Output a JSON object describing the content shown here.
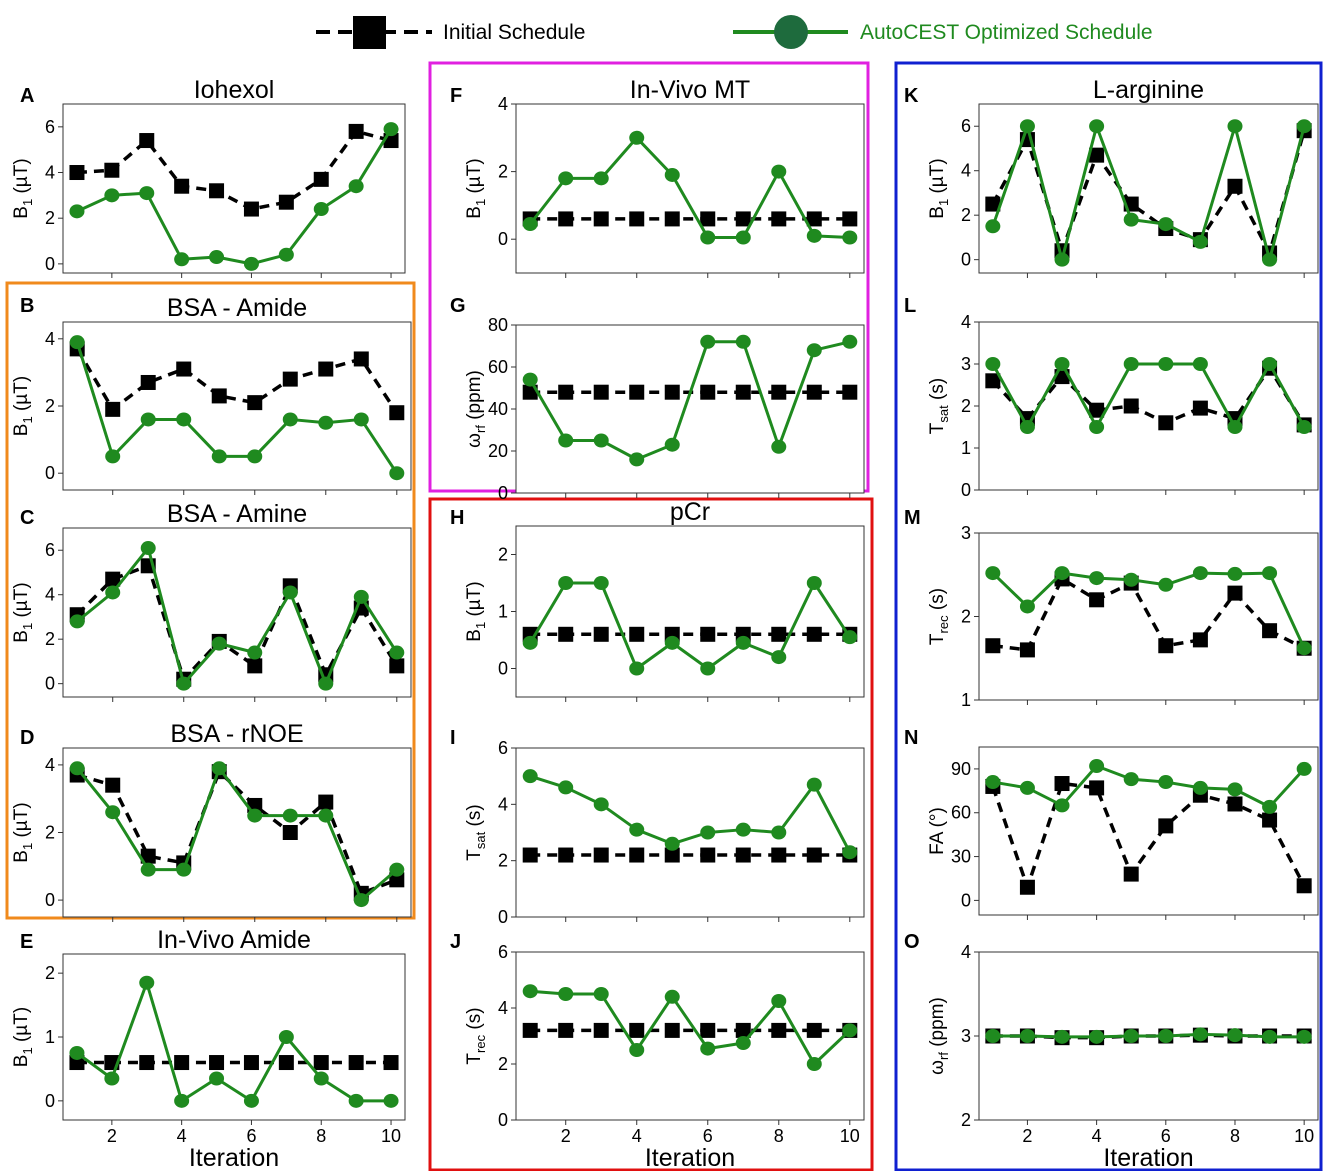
{
  "legend": {
    "initial_label": "Initial Schedule",
    "optimized_label": "AutoCEST Optimized Schedule"
  },
  "colors": {
    "initial": "#000000",
    "optimized": "#1f8a1f",
    "optimized_legend_marker": "#1e6b3d",
    "frame_bsa": "#f08a1c",
    "frame_invivo_mt": "#e020e0",
    "frame_pcr": "#e01010",
    "frame_larginine": "#1020d0"
  },
  "xaxis": {
    "label": "Iteration",
    "ticks": [
      2,
      4,
      6,
      8,
      10
    ],
    "range": [
      0.6,
      10.4
    ]
  },
  "chart_data": [
    {
      "id": "A",
      "type": "line",
      "title": "Iohexol",
      "ylabel": "B1 (µT)",
      "ylim": [
        -0.4,
        7
      ],
      "yticks": [
        0,
        2,
        4,
        6
      ],
      "x": [
        1,
        2,
        3,
        4,
        5,
        6,
        7,
        8,
        9,
        10
      ],
      "series": [
        {
          "name": "Initial Schedule",
          "values": [
            4.0,
            4.1,
            5.4,
            3.4,
            3.2,
            2.4,
            2.7,
            3.7,
            5.8,
            5.4
          ]
        },
        {
          "name": "AutoCEST Optimized Schedule",
          "values": [
            2.3,
            3.0,
            3.1,
            0.2,
            0.3,
            0.0,
            0.4,
            2.4,
            3.4,
            5.9
          ]
        }
      ]
    },
    {
      "id": "B",
      "type": "line",
      "title": "BSA - Amide",
      "ylabel": "B1 (µT)",
      "ylim": [
        -0.5,
        4.5
      ],
      "yticks": [
        0,
        2,
        4
      ],
      "x": [
        1,
        2,
        3,
        4,
        5,
        6,
        7,
        8,
        9,
        10
      ],
      "series": [
        {
          "name": "Initial Schedule",
          "values": [
            3.7,
            1.9,
            2.7,
            3.1,
            2.3,
            2.1,
            2.8,
            3.1,
            3.4,
            1.8
          ]
        },
        {
          "name": "AutoCEST Optimized Schedule",
          "values": [
            3.9,
            0.5,
            1.6,
            1.6,
            0.5,
            0.5,
            1.6,
            1.5,
            1.6,
            0.0
          ]
        }
      ]
    },
    {
      "id": "C",
      "type": "line",
      "title": "BSA - Amine",
      "ylabel": "B1 (µT)",
      "ylim": [
        -0.6,
        7
      ],
      "yticks": [
        0,
        2,
        4,
        6
      ],
      "x": [
        1,
        2,
        3,
        4,
        5,
        6,
        7,
        8,
        9,
        10
      ],
      "series": [
        {
          "name": "Initial Schedule",
          "values": [
            3.1,
            4.7,
            5.3,
            0.2,
            1.9,
            0.8,
            4.4,
            0.4,
            3.4,
            0.8
          ]
        },
        {
          "name": "AutoCEST Optimized Schedule",
          "values": [
            2.8,
            4.1,
            6.1,
            0.0,
            1.8,
            1.4,
            4.1,
            0.0,
            3.9,
            1.4
          ]
        }
      ]
    },
    {
      "id": "D",
      "type": "line",
      "title": "BSA - rNOE",
      "ylabel": "B1 (µT)",
      "ylim": [
        -0.5,
        4.5
      ],
      "yticks": [
        0,
        2,
        4
      ],
      "x": [
        1,
        2,
        3,
        4,
        5,
        6,
        7,
        8,
        9,
        10
      ],
      "series": [
        {
          "name": "Initial Schedule",
          "values": [
            3.7,
            3.4,
            1.3,
            1.1,
            3.8,
            2.8,
            2.0,
            2.9,
            0.2,
            0.6
          ]
        },
        {
          "name": "AutoCEST Optimized Schedule",
          "values": [
            3.9,
            2.6,
            0.9,
            0.9,
            3.9,
            2.5,
            2.5,
            2.5,
            0.0,
            0.9
          ]
        }
      ]
    },
    {
      "id": "E",
      "type": "line",
      "title": "In-Vivo Amide",
      "ylabel": "B1 (µT)",
      "ylim": [
        -0.3,
        2.3
      ],
      "yticks": [
        0,
        1,
        2
      ],
      "x": [
        1,
        2,
        3,
        4,
        5,
        6,
        7,
        8,
        9,
        10
      ],
      "series": [
        {
          "name": "Initial Schedule",
          "values": [
            0.6,
            0.6,
            0.6,
            0.6,
            0.6,
            0.6,
            0.6,
            0.6,
            0.6,
            0.6
          ]
        },
        {
          "name": "AutoCEST Optimized Schedule",
          "values": [
            0.75,
            0.35,
            1.85,
            0.0,
            0.35,
            0.0,
            1.0,
            0.35,
            0.0,
            0.0
          ]
        }
      ]
    },
    {
      "id": "F",
      "type": "line",
      "title": "In-Vivo MT",
      "ylabel": "B1 (µT)",
      "ylim": [
        -1,
        4
      ],
      "yticks": [
        0,
        2,
        4
      ],
      "x": [
        1,
        2,
        3,
        4,
        5,
        6,
        7,
        8,
        9,
        10
      ],
      "series": [
        {
          "name": "Initial Schedule",
          "values": [
            0.6,
            0.6,
            0.6,
            0.6,
            0.6,
            0.6,
            0.6,
            0.6,
            0.6,
            0.6
          ]
        },
        {
          "name": "AutoCEST Optimized Schedule",
          "values": [
            0.45,
            1.8,
            1.8,
            3.0,
            1.9,
            0.05,
            0.05,
            2.0,
            0.1,
            0.05
          ]
        }
      ]
    },
    {
      "id": "G",
      "type": "line",
      "title": "",
      "ylabel": "ωrf (ppm)",
      "ylim": [
        0,
        80
      ],
      "yticks": [
        0,
        20,
        40,
        60,
        80
      ],
      "x": [
        1,
        2,
        3,
        4,
        5,
        6,
        7,
        8,
        9,
        10
      ],
      "series": [
        {
          "name": "Initial Schedule",
          "values": [
            48,
            48,
            48,
            48,
            48,
            48,
            48,
            48,
            48,
            48
          ]
        },
        {
          "name": "AutoCEST Optimized Schedule",
          "values": [
            54,
            25,
            25,
            16,
            23,
            72,
            72,
            22,
            68,
            72
          ]
        }
      ]
    },
    {
      "id": "H",
      "type": "line",
      "title": "pCr",
      "ylabel": "B1 (µT)",
      "ylim": [
        -0.5,
        2.5
      ],
      "yticks": [
        0,
        1,
        2
      ],
      "x": [
        1,
        2,
        3,
        4,
        5,
        6,
        7,
        8,
        9,
        10
      ],
      "series": [
        {
          "name": "Initial Schedule",
          "values": [
            0.6,
            0.6,
            0.6,
            0.6,
            0.6,
            0.6,
            0.6,
            0.6,
            0.6,
            0.6
          ]
        },
        {
          "name": "AutoCEST Optimized Schedule",
          "values": [
            0.45,
            1.5,
            1.5,
            0.0,
            0.45,
            0.0,
            0.45,
            0.2,
            1.5,
            0.55
          ]
        }
      ]
    },
    {
      "id": "I",
      "type": "line",
      "title": "",
      "ylabel": "Tsat (s)",
      "ylim": [
        0,
        6
      ],
      "yticks": [
        0,
        2,
        4,
        6
      ],
      "x": [
        1,
        2,
        3,
        4,
        5,
        6,
        7,
        8,
        9,
        10
      ],
      "series": [
        {
          "name": "Initial Schedule",
          "values": [
            2.2,
            2.2,
            2.2,
            2.2,
            2.2,
            2.2,
            2.2,
            2.2,
            2.2,
            2.2
          ]
        },
        {
          "name": "AutoCEST Optimized Schedule",
          "values": [
            5.0,
            4.6,
            4.0,
            3.1,
            2.6,
            3.0,
            3.1,
            3.0,
            4.7,
            2.3
          ]
        }
      ]
    },
    {
      "id": "J",
      "type": "line",
      "title": "",
      "ylabel": "Trec (s)",
      "ylim": [
        0,
        6
      ],
      "yticks": [
        0,
        2,
        4,
        6
      ],
      "x": [
        1,
        2,
        3,
        4,
        5,
        6,
        7,
        8,
        9,
        10
      ],
      "series": [
        {
          "name": "Initial Schedule",
          "values": [
            3.2,
            3.2,
            3.2,
            3.2,
            3.2,
            3.2,
            3.2,
            3.2,
            3.2,
            3.2
          ]
        },
        {
          "name": "AutoCEST Optimized Schedule",
          "values": [
            4.6,
            4.5,
            4.5,
            2.5,
            4.4,
            2.55,
            2.75,
            4.25,
            2.0,
            3.2
          ]
        }
      ]
    },
    {
      "id": "K",
      "type": "line",
      "title": "L-arginine",
      "ylabel": "B1 (µT)",
      "ylim": [
        -0.6,
        7
      ],
      "yticks": [
        0,
        2,
        4,
        6
      ],
      "x": [
        1,
        2,
        3,
        4,
        5,
        6,
        7,
        8,
        9,
        10
      ],
      "series": [
        {
          "name": "Initial Schedule",
          "values": [
            2.5,
            5.4,
            0.4,
            4.7,
            2.5,
            1.4,
            0.9,
            3.3,
            0.3,
            5.8
          ]
        },
        {
          "name": "AutoCEST Optimized Schedule",
          "values": [
            1.5,
            6.0,
            0.0,
            6.0,
            1.8,
            1.6,
            0.8,
            6.0,
            0.0,
            6.0
          ]
        }
      ]
    },
    {
      "id": "L",
      "type": "line",
      "title": "",
      "ylabel": "Tsat (s)",
      "ylim": [
        0,
        4
      ],
      "yticks": [
        0,
        1,
        2,
        3,
        4
      ],
      "x": [
        1,
        2,
        3,
        4,
        5,
        6,
        7,
        8,
        9,
        10
      ],
      "series": [
        {
          "name": "Initial Schedule",
          "values": [
            2.6,
            1.7,
            2.7,
            1.9,
            2.0,
            1.6,
            1.95,
            1.7,
            2.9,
            1.55
          ]
        },
        {
          "name": "AutoCEST Optimized Schedule",
          "values": [
            3.0,
            1.5,
            3.0,
            1.5,
            3.0,
            3.0,
            3.0,
            1.5,
            3.0,
            1.5
          ]
        }
      ]
    },
    {
      "id": "M",
      "type": "line",
      "title": "",
      "ylabel": "Trec (s)",
      "ylim": [
        1,
        3
      ],
      "yticks": [
        1,
        2,
        3
      ],
      "x": [
        1,
        2,
        3,
        4,
        5,
        6,
        7,
        8,
        9,
        10
      ],
      "series": [
        {
          "name": "Initial Schedule",
          "values": [
            1.65,
            1.6,
            2.45,
            2.2,
            2.4,
            1.65,
            1.72,
            2.28,
            1.83,
            1.62
          ]
        },
        {
          "name": "AutoCEST Optimized Schedule",
          "values": [
            2.52,
            2.12,
            2.52,
            2.46,
            2.44,
            2.38,
            2.52,
            2.51,
            2.52,
            1.62
          ]
        }
      ]
    },
    {
      "id": "N",
      "type": "line",
      "title": "",
      "ylabel": "FA (°)",
      "ylim": [
        -10,
        105
      ],
      "yticks": [
        0,
        30,
        60,
        90
      ],
      "x": [
        1,
        2,
        3,
        4,
        5,
        6,
        7,
        8,
        9,
        10
      ],
      "series": [
        {
          "name": "Initial Schedule",
          "values": [
            78,
            9,
            80,
            77,
            18,
            51,
            72,
            66,
            55,
            10
          ]
        },
        {
          "name": "AutoCEST Optimized Schedule",
          "values": [
            81,
            77,
            65,
            92,
            83,
            81,
            77,
            76,
            64,
            90
          ]
        }
      ]
    },
    {
      "id": "O",
      "type": "line",
      "title": "",
      "ylabel": "ωrf (ppm)",
      "ylim": [
        2,
        4
      ],
      "yticks": [
        2,
        3,
        4
      ],
      "x": [
        1,
        2,
        3,
        4,
        5,
        6,
        7,
        8,
        9,
        10
      ],
      "series": [
        {
          "name": "Initial Schedule",
          "values": [
            3.0,
            3.0,
            2.98,
            2.98,
            3.0,
            3.0,
            3.01,
            3.0,
            3.0,
            3.0
          ]
        },
        {
          "name": "AutoCEST Optimized Schedule",
          "values": [
            3.0,
            3.0,
            2.99,
            2.99,
            3.0,
            3.0,
            3.02,
            3.01,
            2.99,
            2.99
          ]
        }
      ]
    }
  ]
}
